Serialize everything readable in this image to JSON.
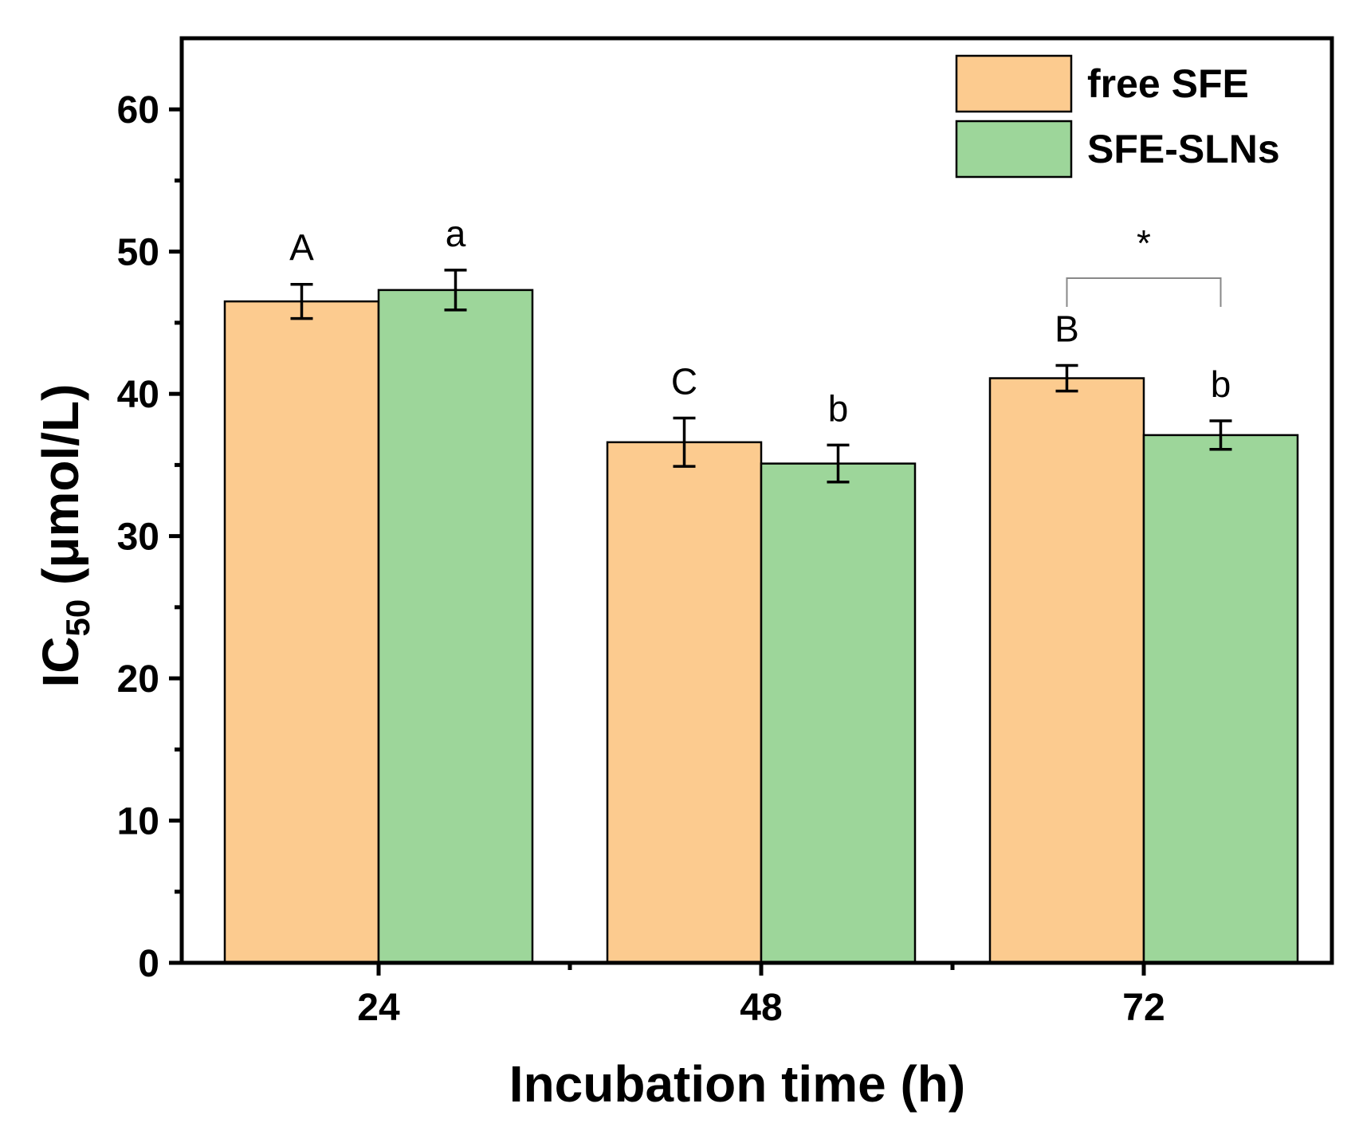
{
  "chart_data": {
    "type": "bar",
    "xlabel": "Incubation time (h)",
    "ylabel_main": "IC",
    "ylabel_sub": "50",
    "ylabel_unit": " (μmol/L)",
    "categories": [
      "24",
      "48",
      "72"
    ],
    "ylim": [
      0,
      65
    ],
    "yticks": [
      0,
      10,
      20,
      30,
      40,
      50,
      60
    ],
    "series": [
      {
        "name": "free SFE",
        "color": "#FCCB8F",
        "values": [
          46.5,
          36.6,
          41.1
        ],
        "errors": [
          1.2,
          1.7,
          0.9
        ],
        "labels": [
          "A",
          "C",
          "B"
        ]
      },
      {
        "name": "SFE-SLNs",
        "color": "#9DD69A",
        "values": [
          47.3,
          35.1,
          37.1
        ],
        "errors": [
          1.4,
          1.3,
          1.0
        ],
        "labels": [
          "a",
          "b",
          "b"
        ]
      }
    ],
    "significance": {
      "category": "72",
      "symbol": "*"
    },
    "legend_position": "top-right"
  }
}
